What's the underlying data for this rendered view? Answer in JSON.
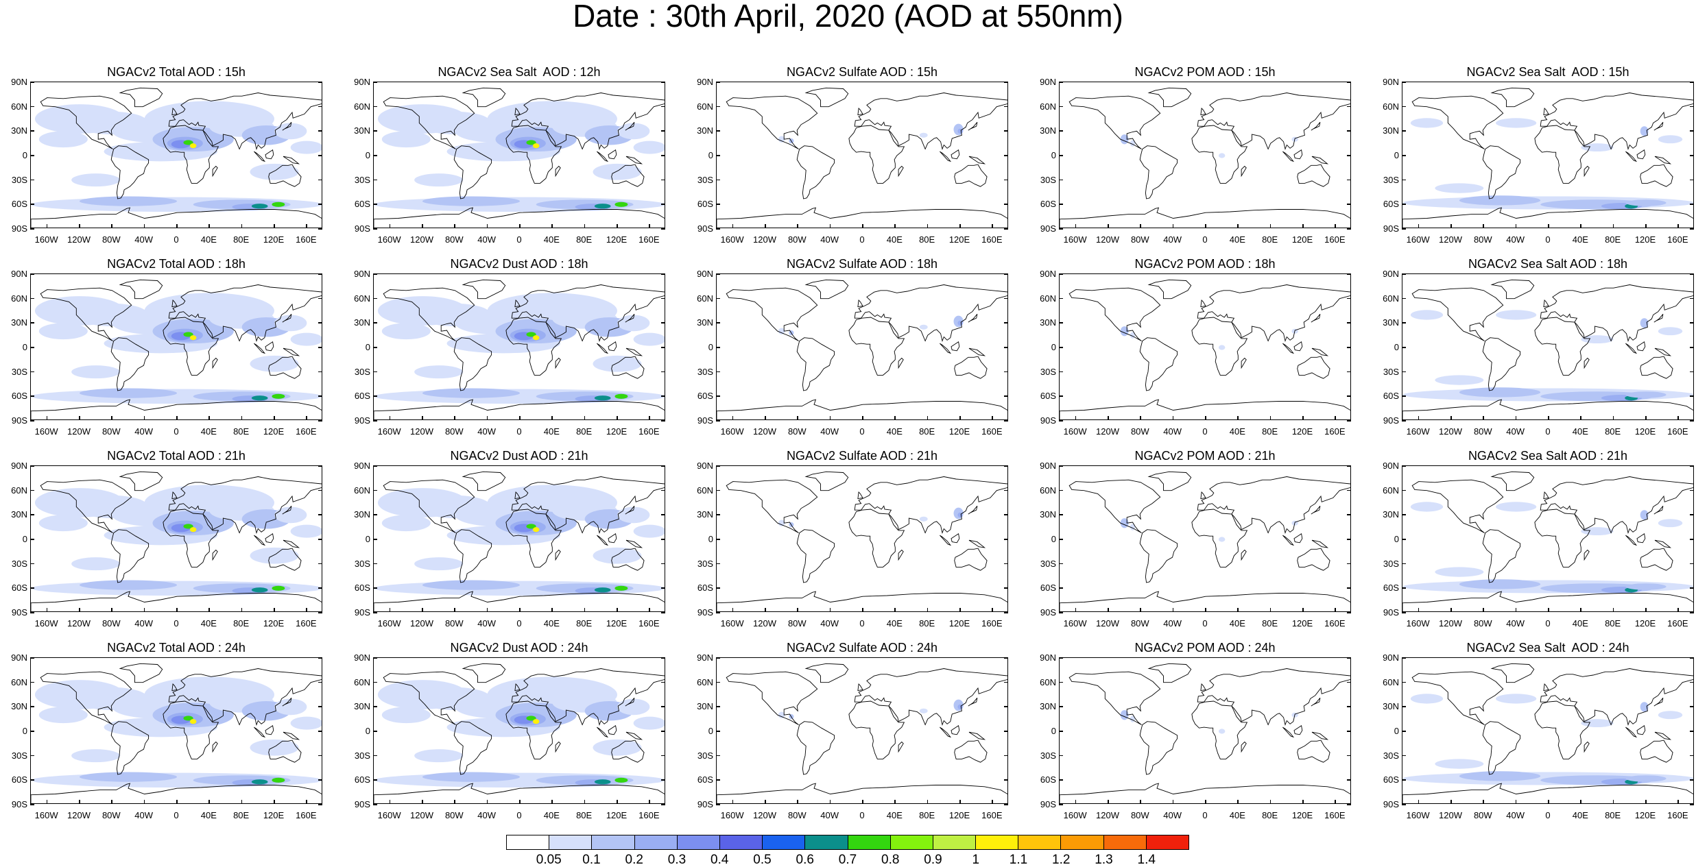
{
  "title": "Date : 30th April, 2020 (AOD at 550nm)",
  "lat_labels": [
    "90N",
    "60N",
    "30N",
    "0",
    "30S",
    "60S",
    "90S"
  ],
  "lon_labels": [
    "160W",
    "120W",
    "80W",
    "40W",
    "0",
    "40E",
    "80E",
    "120E",
    "160E"
  ],
  "panels": [
    {
      "title": "NGACv2 Total AOD : 15h",
      "kind": "total"
    },
    {
      "title": "NGACv2 Sea Salt  AOD : 12h",
      "kind": "total"
    },
    {
      "title": "NGACv2 Sulfate AOD : 15h",
      "kind": "sulfate"
    },
    {
      "title": "NGACv2 POM AOD : 15h",
      "kind": "pom"
    },
    {
      "title": "NGACv2 Sea Salt  AOD : 15h",
      "kind": "seasalt"
    },
    {
      "title": "NGACv2 Total AOD : 18h",
      "kind": "total"
    },
    {
      "title": "NGACv2 Dust AOD : 18h",
      "kind": "total"
    },
    {
      "title": "NGACv2 Sulfate AOD : 18h",
      "kind": "sulfate"
    },
    {
      "title": "NGACv2 POM AOD : 18h",
      "kind": "pom"
    },
    {
      "title": "NGACv2 Sea Salt AOD : 18h",
      "kind": "seasalt"
    },
    {
      "title": "NGACv2 Total AOD : 21h",
      "kind": "total"
    },
    {
      "title": "NGACv2 Dust AOD : 21h",
      "kind": "total"
    },
    {
      "title": "NGACv2 Sulfate AOD : 21h",
      "kind": "sulfate"
    },
    {
      "title": "NGACv2 POM AOD : 21h",
      "kind": "pom"
    },
    {
      "title": "NGACv2 Sea Salt AOD : 21h",
      "kind": "seasalt"
    },
    {
      "title": "NGACv2 Total AOD : 24h",
      "kind": "total"
    },
    {
      "title": "NGACv2 Dust AOD : 24h",
      "kind": "total"
    },
    {
      "title": "NGACv2 Sulfate AOD : 24h",
      "kind": "sulfate"
    },
    {
      "title": "NGACv2 POM AOD : 24h",
      "kind": "pom"
    },
    {
      "title": "NGACv2 Sea Salt  AOD : 24h",
      "kind": "seasalt"
    }
  ],
  "colorbar": {
    "labels": [
      "0.05",
      "0.1",
      "0.2",
      "0.3",
      "0.4",
      "0.5",
      "0.6",
      "0.7",
      "0.8",
      "0.9",
      "1",
      "1.1",
      "1.2",
      "1.3",
      "1.4"
    ],
    "colors": [
      "#ffffff",
      "#d6e0fb",
      "#b3c4f5",
      "#9aaef2",
      "#7c8ff0",
      "#5a63e8",
      "#1a62ef",
      "#0b8f8b",
      "#33d60f",
      "#84f20e",
      "#bff043",
      "#fff00a",
      "#ffc40a",
      "#fb9b05",
      "#f76b0a",
      "#f0210b"
    ]
  }
}
